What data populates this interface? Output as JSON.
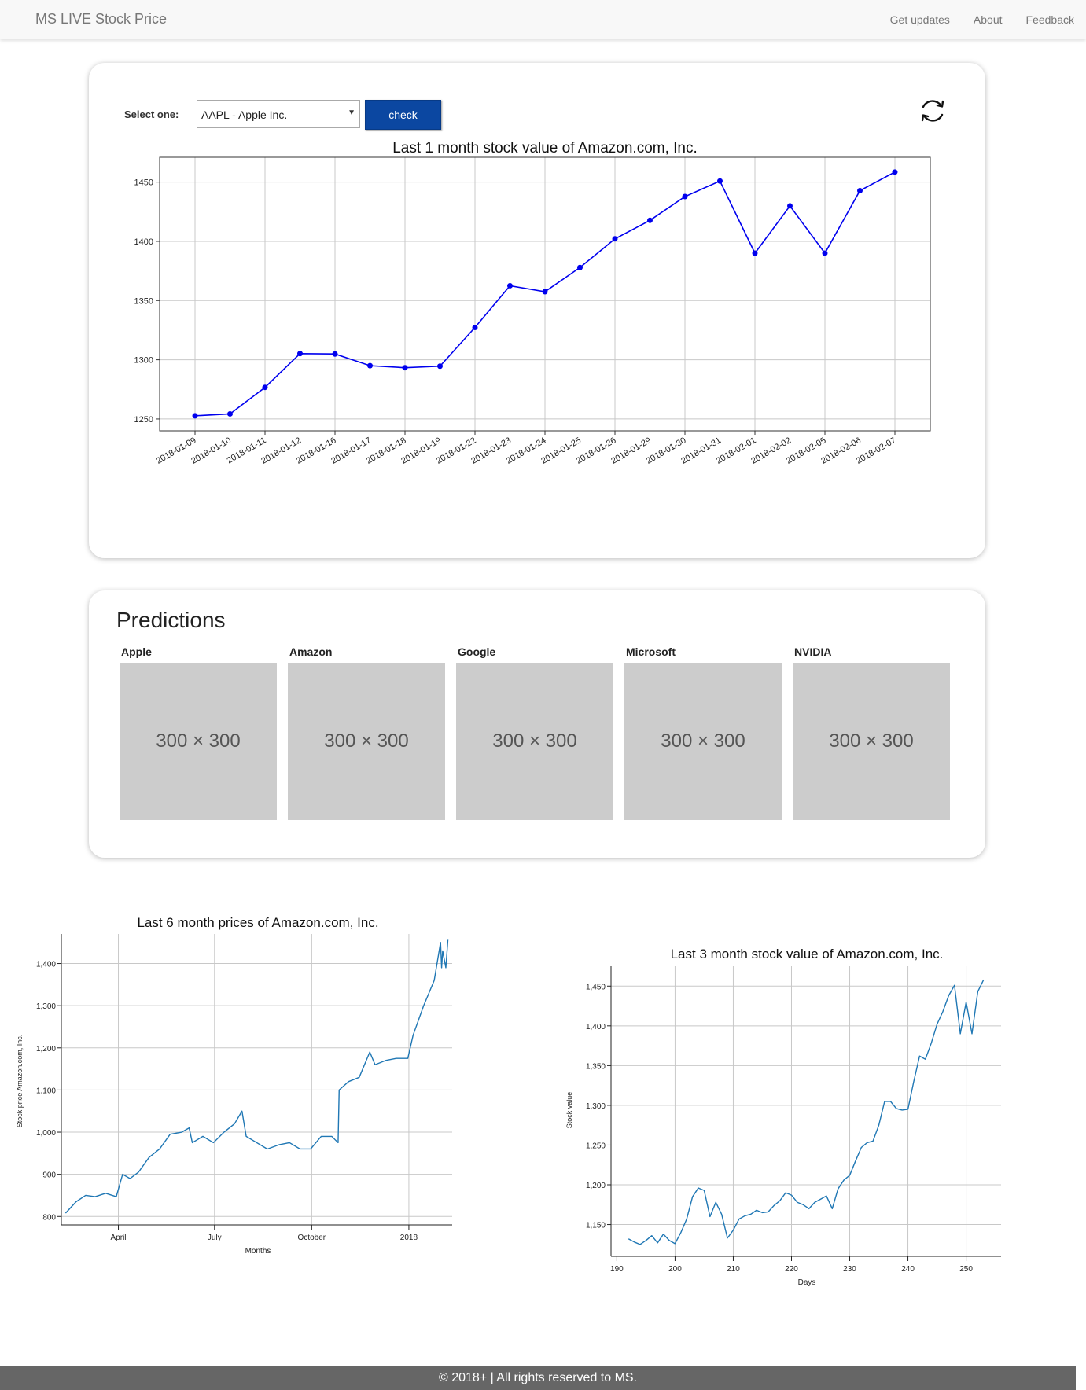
{
  "navbar": {
    "brand": "MS LIVE Stock Price",
    "links": [
      "Get updates",
      "About",
      "Feedback"
    ]
  },
  "selector": {
    "label": "Select one:",
    "selected": "AAPL - Apple Inc.",
    "check_label": "check"
  },
  "icons": {
    "refresh": "refresh-icon",
    "caret": "caret-down-icon"
  },
  "predictions": {
    "title": "Predictions",
    "items": [
      {
        "name": "Apple",
        "placeholder": "300 × 300"
      },
      {
        "name": "Amazon",
        "placeholder": "300 × 300"
      },
      {
        "name": "Google",
        "placeholder": "300 × 300"
      },
      {
        "name": "Microsoft",
        "placeholder": "300 × 300"
      },
      {
        "name": "NVIDIA",
        "placeholder": "300 × 300"
      }
    ]
  },
  "footer": {
    "text": "© 2018+ | All rights reserved to MS."
  },
  "chart_data": [
    {
      "type": "line",
      "title": "Last 1 month stock value of Amazon.com, Inc.",
      "xlabel": "",
      "ylabel": "",
      "color": "#0000ee",
      "grid": true,
      "categories": [
        "2018-01-09",
        "2018-01-10",
        "2018-01-11",
        "2018-01-12",
        "2018-01-16",
        "2018-01-17",
        "2018-01-18",
        "2018-01-19",
        "2018-01-22",
        "2018-01-23",
        "2018-01-24",
        "2018-01-25",
        "2018-01-26",
        "2018-01-29",
        "2018-01-30",
        "2018-01-31",
        "2018-02-01",
        "2018-02-02",
        "2018-02-05",
        "2018-02-06",
        "2018-02-07"
      ],
      "values": [
        1252.7,
        1254.3,
        1276.7,
        1305.2,
        1304.9,
        1295.0,
        1293.3,
        1294.6,
        1327.3,
        1362.5,
        1357.5,
        1377.9,
        1402.1,
        1417.7,
        1437.8,
        1450.9,
        1390.0,
        1429.9,
        1390.0,
        1442.8,
        1458.5
      ],
      "yticks": [
        1250,
        1300,
        1350,
        1400,
        1450
      ],
      "ylim": [
        1240,
        1471
      ]
    },
    {
      "type": "line",
      "title": "Last 6 month prices of Amazon.com, Inc.",
      "xlabel": "Months",
      "ylabel": "Stock price Amazon.com, Inc.",
      "color": "#1f77b4",
      "grid": true,
      "x": [
        "2017-02-10",
        "2017-02-20",
        "2017-03-01",
        "2017-03-10",
        "2017-03-20",
        "2017-03-30",
        "2017-04-05",
        "2017-04-12",
        "2017-04-20",
        "2017-04-30",
        "2017-05-10",
        "2017-05-20",
        "2017-05-31",
        "2017-06-07",
        "2017-06-10",
        "2017-06-20",
        "2017-06-30",
        "2017-07-10",
        "2017-07-20",
        "2017-07-27",
        "2017-07-31",
        "2017-08-10",
        "2017-08-20",
        "2017-08-31",
        "2017-09-10",
        "2017-09-20",
        "2017-09-30",
        "2017-10-10",
        "2017-10-20",
        "2017-10-26",
        "2017-10-27",
        "2017-11-05",
        "2017-11-15",
        "2017-11-25",
        "2017-11-30",
        "2017-12-10",
        "2017-12-20",
        "2017-12-31",
        "2018-01-05",
        "2018-01-15",
        "2018-01-25",
        "2018-01-31",
        "2018-02-01",
        "2018-02-02",
        "2018-02-05",
        "2018-02-07"
      ],
      "values": [
        808,
        835,
        850,
        847,
        855,
        847,
        900,
        890,
        905,
        940,
        960,
        995,
        1000,
        1010,
        975,
        990,
        975,
        1000,
        1020,
        1050,
        990,
        975,
        960,
        970,
        975,
        960,
        960,
        990,
        990,
        975,
        1100,
        1120,
        1130,
        1190,
        1160,
        1170,
        1175,
        1175,
        1230,
        1300,
        1360,
        1450,
        1390,
        1430,
        1390,
        1458
      ],
      "xticks": [
        "April",
        "July",
        "October",
        "2018"
      ],
      "yticks": [
        "800",
        "900",
        "1,000",
        "1,100",
        "1,200",
        "1,300",
        "1,400"
      ],
      "ylim": [
        780,
        1470
      ]
    },
    {
      "type": "line",
      "title": "Last 3 month stock value of Amazon.com, Inc.",
      "xlabel": "Days",
      "ylabel": "Stock value",
      "color": "#1f77b4",
      "grid": true,
      "x": [
        192,
        193,
        194,
        195,
        196,
        197,
        198,
        199,
        200,
        201,
        202,
        203,
        204,
        205,
        206,
        207,
        208,
        209,
        210,
        211,
        212,
        213,
        214,
        215,
        216,
        217,
        218,
        219,
        220,
        221,
        222,
        223,
        224,
        225,
        226,
        227,
        228,
        229,
        230,
        231,
        232,
        233,
        234,
        235,
        236,
        237,
        238,
        239,
        240,
        241,
        242,
        243,
        244,
        245,
        246,
        247,
        248,
        249,
        250,
        251,
        252,
        253
      ],
      "values": [
        1132,
        1128,
        1125,
        1130,
        1136,
        1127,
        1138,
        1130,
        1126,
        1140,
        1157,
        1185,
        1196,
        1193,
        1160,
        1178,
        1163,
        1133,
        1143,
        1157,
        1161,
        1163,
        1168,
        1165,
        1166,
        1174,
        1180,
        1190,
        1187,
        1178,
        1175,
        1170,
        1178,
        1182,
        1186,
        1170,
        1195,
        1206,
        1212,
        1230,
        1247,
        1253,
        1255,
        1275,
        1305,
        1305,
        1296,
        1294,
        1295,
        1330,
        1362,
        1358,
        1378,
        1402,
        1418,
        1438,
        1451,
        1390,
        1430,
        1390,
        1443,
        1458
      ],
      "xticks": [
        "190",
        "200",
        "210",
        "220",
        "230",
        "240",
        "250"
      ],
      "yticks": [
        "1,150",
        "1,200",
        "1,250",
        "1,300",
        "1,350",
        "1,400",
        "1,450"
      ],
      "xlim": [
        189,
        256
      ],
      "ylim": [
        1110,
        1475
      ]
    }
  ]
}
